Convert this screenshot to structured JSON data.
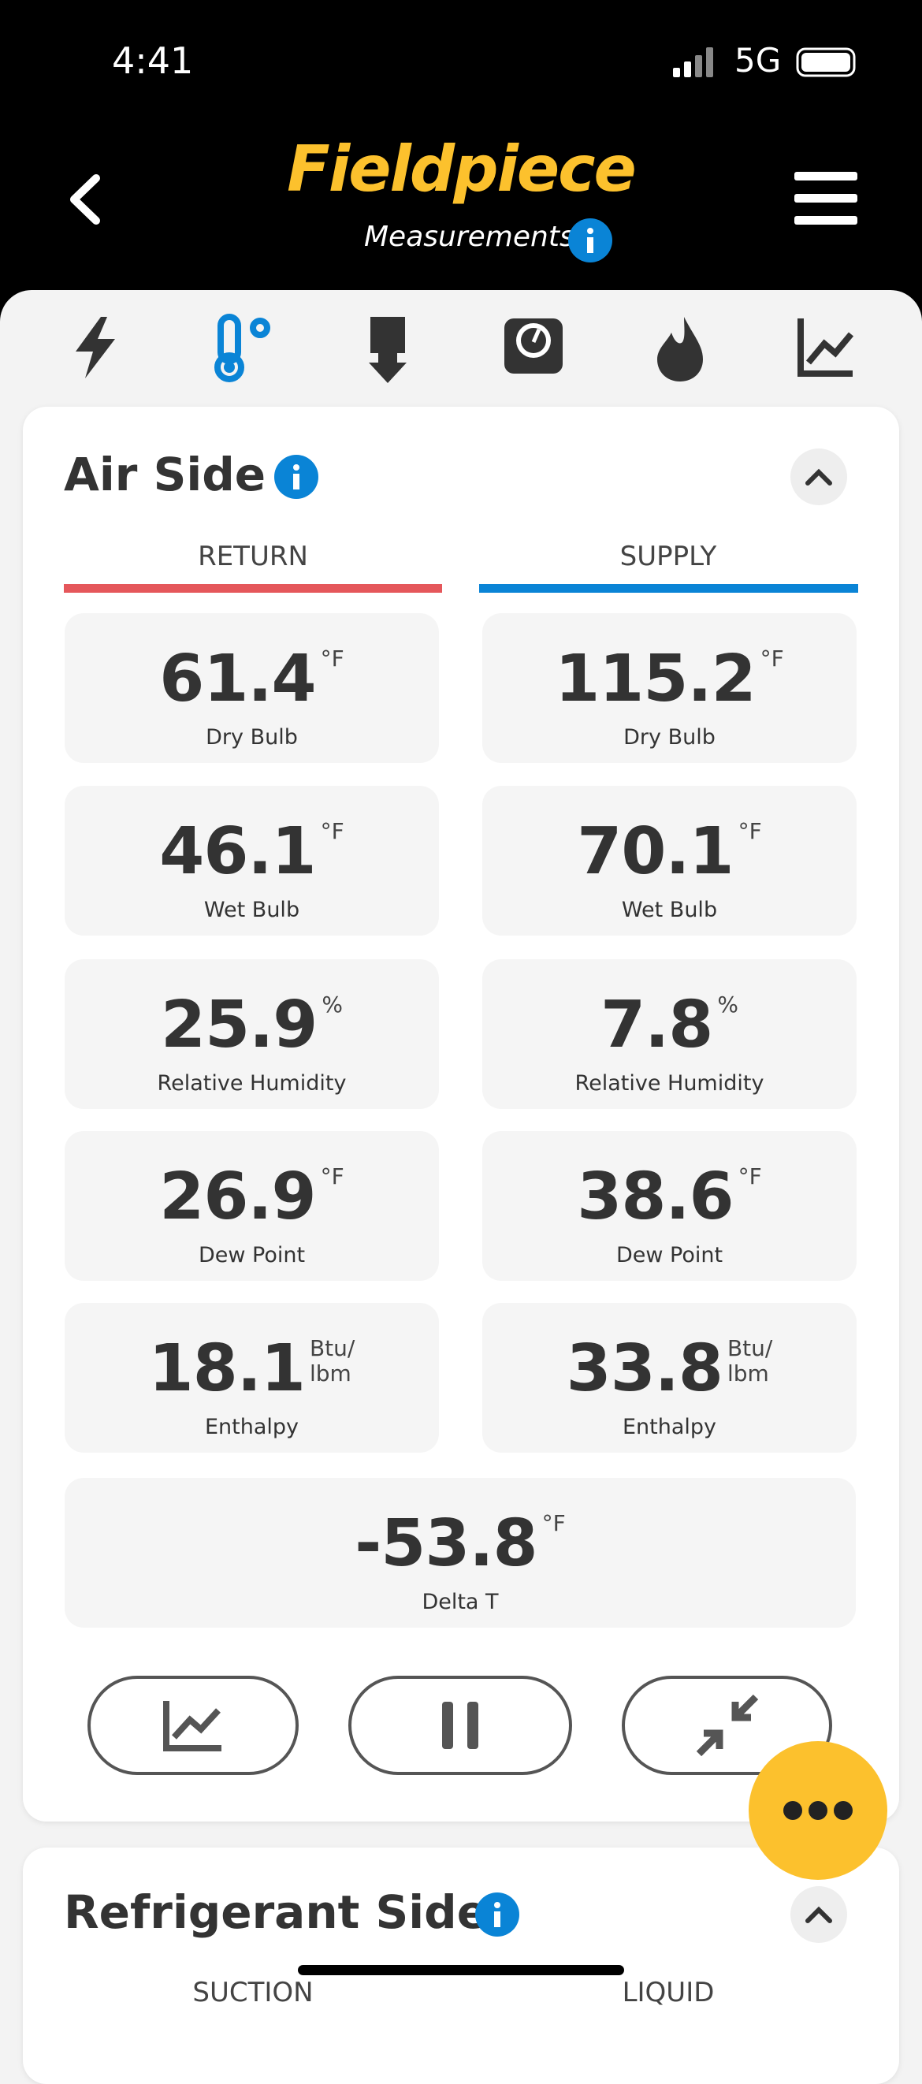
{
  "status_bar": {
    "time": "4:41",
    "network": "5G"
  },
  "header": {
    "brand": "Fieldpiece",
    "subtitle": "Measurements"
  },
  "air_side": {
    "title": "Air Side",
    "columns": [
      "RETURN",
      "SUPPLY"
    ],
    "rows": [
      [
        {
          "value": "61.4",
          "unit": [
            "°F"
          ],
          "label": "Dry Bulb"
        },
        {
          "value": "115.2",
          "unit": [
            "°F"
          ],
          "label": "Dry Bulb"
        }
      ],
      [
        {
          "value": "46.1",
          "unit": [
            "°F"
          ],
          "label": "Wet Bulb"
        },
        {
          "value": "70.1",
          "unit": [
            "°F"
          ],
          "label": "Wet Bulb"
        }
      ],
      [
        {
          "value": "25.9",
          "unit": [
            "%"
          ],
          "label": "Relative Humidity"
        },
        {
          "value": "7.8",
          "unit": [
            "%"
          ],
          "label": "Relative Humidity"
        }
      ],
      [
        {
          "value": "26.9",
          "unit": [
            "°F"
          ],
          "label": "Dew Point"
        },
        {
          "value": "38.6",
          "unit": [
            "°F"
          ],
          "label": "Dew Point"
        }
      ],
      [
        {
          "value": "18.1",
          "unit": [
            "Btu/",
            "lbm"
          ],
          "label": "Enthalpy"
        },
        {
          "value": "33.8",
          "unit": [
            "Btu/",
            "lbm"
          ],
          "label": "Enthalpy"
        }
      ]
    ],
    "delta": {
      "value": "-53.8",
      "unit": [
        "°F"
      ],
      "label": "Delta T"
    }
  },
  "refrigerant_side": {
    "title": "Refrigerant Side",
    "columns": [
      "SUCTION",
      "LIQUID"
    ]
  }
}
